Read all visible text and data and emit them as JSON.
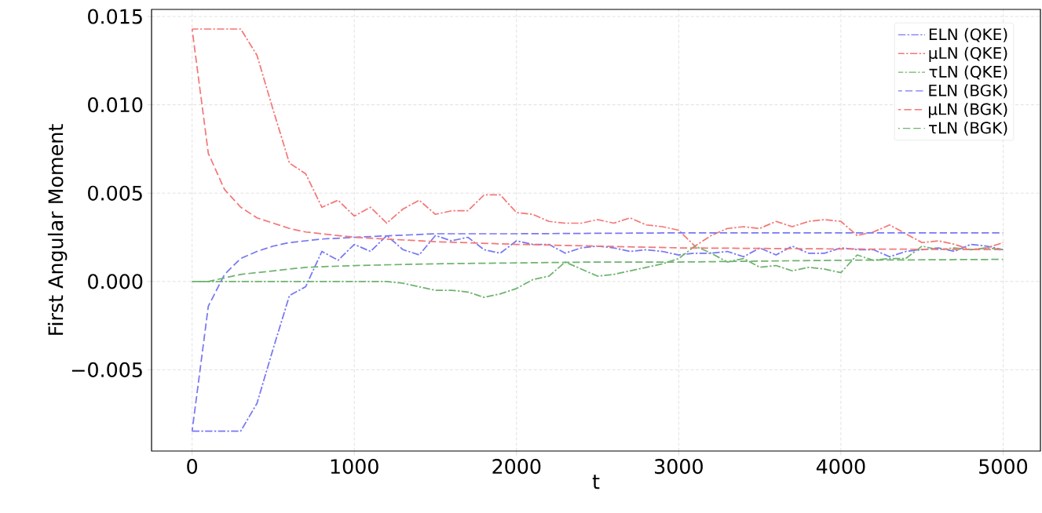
{
  "chart_data": {
    "type": "line",
    "xlabel": "t",
    "ylabel": "First Angular Moment",
    "xlim": [
      -250,
      5230
    ],
    "ylim": [
      -0.0096,
      0.0154
    ],
    "xticks": [
      0,
      1000,
      2000,
      3000,
      4000,
      5000
    ],
    "yticks": [
      {
        "value": -0.005,
        "label": "−0.005"
      },
      {
        "value": 0.0,
        "label": "0.000"
      },
      {
        "value": 0.005,
        "label": "0.005"
      },
      {
        "value": 0.01,
        "label": "0.010"
      },
      {
        "value": 0.015,
        "label": "0.015"
      }
    ],
    "grid": true,
    "legend": "top right",
    "x": [
      0,
      100,
      200,
      300,
      400,
      500,
      600,
      700,
      800,
      900,
      1000,
      1100,
      1200,
      1300,
      1400,
      1500,
      1600,
      1700,
      1800,
      1900,
      2000,
      2100,
      2200,
      2300,
      2400,
      2500,
      2600,
      2700,
      2800,
      2900,
      3000,
      3100,
      3200,
      3300,
      3400,
      3500,
      3600,
      3700,
      3800,
      3900,
      4000,
      4100,
      4200,
      4300,
      4400,
      4500,
      4600,
      4700,
      4800,
      4900,
      5000
    ],
    "series": [
      {
        "name": "ELN (QKE)",
        "color": "#7777f5",
        "line_style": "dashdot",
        "values": [
          -0.00847,
          -0.00847,
          -0.00847,
          -0.00847,
          -0.0069,
          -0.0038,
          -0.0008,
          -0.0003,
          0.0017,
          0.0012,
          0.0021,
          0.0017,
          0.0026,
          0.0018,
          0.0015,
          0.0026,
          0.0023,
          0.0025,
          0.0018,
          0.0016,
          0.0023,
          0.0021,
          0.0021,
          0.0016,
          0.0019,
          0.002,
          0.0019,
          0.0017,
          0.0018,
          0.0017,
          0.0015,
          0.0016,
          0.0016,
          0.0017,
          0.0014,
          0.0019,
          0.0015,
          0.002,
          0.0016,
          0.0016,
          0.0019,
          0.0018,
          0.0018,
          0.0014,
          0.0017,
          0.0018,
          0.0019,
          0.0017,
          0.0021,
          0.002,
          0.0018
        ]
      },
      {
        "name": "μLN (QKE)",
        "color": "#f57777",
        "line_style": "dashdot",
        "values": [
          0.01429,
          0.01429,
          0.01429,
          0.01429,
          0.0128,
          0.0097,
          0.0067,
          0.0061,
          0.0042,
          0.0046,
          0.0037,
          0.0042,
          0.0033,
          0.0041,
          0.0046,
          0.0038,
          0.004,
          0.004,
          0.0049,
          0.0049,
          0.0039,
          0.0038,
          0.0034,
          0.0033,
          0.0033,
          0.0035,
          0.0033,
          0.0036,
          0.0032,
          0.0031,
          0.0029,
          0.002,
          0.0026,
          0.003,
          0.0031,
          0.003,
          0.0034,
          0.0031,
          0.0034,
          0.0035,
          0.0034,
          0.0026,
          0.0028,
          0.0032,
          0.0027,
          0.0022,
          0.0023,
          0.0021,
          0.0018,
          0.0019,
          0.0022
        ]
      },
      {
        "name": "τLN (QKE)",
        "color": "#6fb36f",
        "line_style": "dashdot",
        "values": [
          0,
          0,
          0,
          0,
          0,
          0,
          0,
          0,
          0,
          0,
          0,
          0,
          0,
          -0.0001,
          -0.0003,
          -0.0005,
          -0.0005,
          -0.0006,
          -0.0009,
          -0.0007,
          -0.0004,
          0.0001,
          0.0003,
          0.0011,
          0.0007,
          0.0003,
          0.0004,
          0.0006,
          0.0008,
          0.001,
          0.0013,
          0.002,
          0.0016,
          0.0011,
          0.0013,
          0.0008,
          0.0009,
          0.0006,
          0.0008,
          0.0007,
          0.0005,
          0.0015,
          0.0012,
          0.0013,
          0.0013,
          0.002,
          0.0018,
          0.0019,
          0.0018,
          0.0019,
          0.0018
        ]
      },
      {
        "name": "ELN (BGK)",
        "color": "#7777f5",
        "line_style": "dashed",
        "x": [
          0,
          100,
          200,
          300,
          400,
          500,
          600,
          700,
          800,
          1000,
          1500,
          2000,
          3000,
          4000,
          5000
        ],
        "values": [
          -0.00847,
          -0.0014,
          0.0004,
          0.0013,
          0.0017,
          0.002,
          0.0022,
          0.0023,
          0.0024,
          0.0025,
          0.0027,
          0.0027,
          0.00275,
          0.00275,
          0.00275
        ]
      },
      {
        "name": "μLN (BGK)",
        "color": "#f57777",
        "line_style": "dashed",
        "x": [
          0,
          100,
          200,
          300,
          400,
          500,
          600,
          700,
          800,
          1000,
          1500,
          2000,
          2500,
          3000,
          4000,
          5000
        ],
        "values": [
          0.01429,
          0.00725,
          0.0052,
          0.0042,
          0.0036,
          0.0033,
          0.003,
          0.0028,
          0.0027,
          0.0025,
          0.00225,
          0.0021,
          0.002,
          0.0019,
          0.00184,
          0.0018
        ]
      },
      {
        "name": "τLN (BGK)",
        "color": "#6fb36f",
        "line_style": "dashed",
        "x": [
          0,
          100,
          200,
          300,
          400,
          500,
          700,
          1000,
          1500,
          2000,
          2500,
          3000,
          4000,
          5000
        ],
        "values": [
          0,
          0,
          0.0002,
          0.0004,
          0.0005,
          0.0006,
          0.0008,
          0.0009,
          0.001,
          0.00105,
          0.0011,
          0.0011,
          0.0012,
          0.00125
        ]
      }
    ]
  }
}
